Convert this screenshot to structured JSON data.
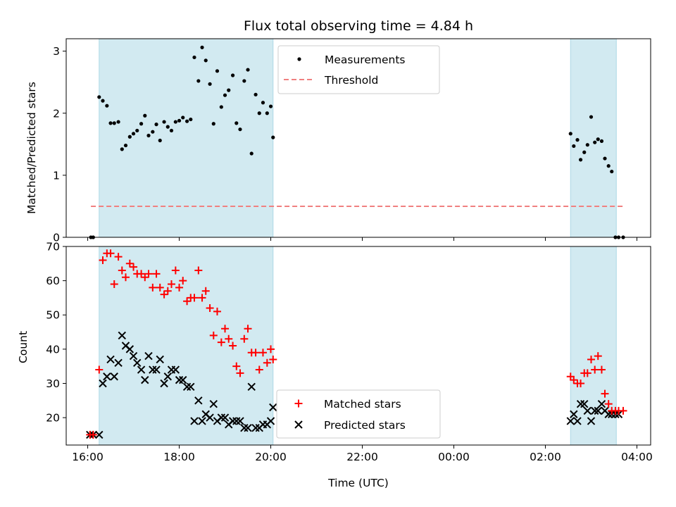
{
  "chart_data": {
    "title": "Flux total observing time = 4.84 h",
    "xlabel": "Time (UTC)",
    "x_tick_labels": [
      "16:00",
      "18:00",
      "20:00",
      "22:00",
      "00:00",
      "02:00",
      "04:00"
    ],
    "x_tick_hours": [
      16,
      18,
      20,
      22,
      24,
      26,
      28
    ],
    "xlim_hours": [
      15.53,
      28.3
    ],
    "shaded_intervals_hours": [
      [
        16.25,
        20.05
      ],
      [
        26.55,
        27.55
      ]
    ],
    "colors": {
      "shade": "#add8e6",
      "threshold": "#f08080",
      "matched": "#ff0000",
      "predicted": "#000000",
      "measurements": "#000000"
    },
    "top_panel": {
      "type": "scatter",
      "ylabel": "Matched/Predicted stars",
      "ylim": [
        0,
        3.2
      ],
      "y_ticks": [
        0,
        1,
        2,
        3
      ],
      "legend_position": "top-center",
      "threshold": {
        "name": "Threshold",
        "y": 0.5,
        "x_range_hours": [
          16.07,
          27.7
        ],
        "style": "dashed"
      },
      "measurements": {
        "name": "Measurements",
        "x_hours": [
          16.07,
          16.12,
          16.25,
          16.33,
          16.42,
          16.5,
          16.58,
          16.67,
          16.75,
          16.83,
          16.92,
          17.0,
          17.08,
          17.17,
          17.25,
          17.33,
          17.42,
          17.5,
          17.58,
          17.67,
          17.75,
          17.83,
          17.92,
          18.0,
          18.08,
          18.17,
          18.25,
          18.33,
          18.42,
          18.5,
          18.58,
          18.67,
          18.75,
          18.83,
          18.92,
          19.0,
          19.08,
          19.17,
          19.25,
          19.33,
          19.42,
          19.5,
          19.58,
          19.67,
          19.75,
          19.83,
          19.92,
          20.0,
          20.05,
          26.55,
          26.62,
          26.7,
          26.77,
          26.85,
          26.92,
          27.0,
          27.08,
          27.15,
          27.23,
          27.3,
          27.38,
          27.45,
          27.53,
          27.6,
          27.7
        ],
        "y": [
          0.0,
          0.0,
          2.26,
          2.2,
          2.12,
          1.84,
          1.84,
          1.86,
          1.42,
          1.48,
          1.62,
          1.67,
          1.72,
          1.83,
          1.96,
          1.64,
          1.7,
          1.82,
          1.56,
          1.86,
          1.78,
          1.72,
          1.86,
          1.88,
          1.93,
          1.87,
          1.9,
          2.9,
          2.52,
          3.06,
          2.85,
          2.47,
          1.83,
          2.68,
          2.1,
          2.29,
          2.37,
          2.61,
          1.84,
          1.74,
          2.52,
          2.7,
          1.35,
          2.3,
          2.0,
          2.17,
          2.0,
          2.11,
          1.61,
          1.67,
          1.47,
          1.57,
          1.25,
          1.37,
          1.49,
          1.94,
          1.53,
          1.58,
          1.55,
          1.27,
          1.15,
          1.06,
          0.0,
          0.0,
          0.0
        ]
      }
    },
    "bottom_panel": {
      "type": "scatter",
      "ylabel": "Count",
      "ylim": [
        12,
        70
      ],
      "y_ticks": [
        20,
        30,
        40,
        50,
        60,
        70
      ],
      "legend_position": "bottom-center",
      "series": [
        {
          "name": "Matched stars",
          "marker": "plus",
          "x_hours": [
            16.05,
            16.12,
            16.25,
            16.33,
            16.42,
            16.5,
            16.58,
            16.67,
            16.75,
            16.83,
            16.92,
            17.0,
            17.08,
            17.17,
            17.25,
            17.33,
            17.42,
            17.5,
            17.58,
            17.67,
            17.75,
            17.83,
            17.92,
            18.0,
            18.08,
            18.17,
            18.25,
            18.33,
            18.42,
            18.5,
            18.58,
            18.67,
            18.75,
            18.83,
            18.92,
            19.0,
            19.08,
            19.17,
            19.25,
            19.33,
            19.42,
            19.5,
            19.58,
            19.67,
            19.75,
            19.83,
            19.92,
            20.0,
            20.05,
            26.55,
            26.62,
            26.7,
            26.77,
            26.85,
            26.92,
            27.0,
            27.08,
            27.15,
            27.23,
            27.3,
            27.38,
            27.45,
            27.53,
            27.6,
            27.7
          ],
          "y": [
            15,
            15,
            34,
            66,
            68,
            68,
            59,
            67,
            63,
            61,
            65,
            64,
            62,
            62,
            61,
            62,
            58,
            62,
            58,
            56,
            57,
            59,
            63,
            58,
            60,
            54,
            55,
            55,
            63,
            55,
            57,
            52,
            44,
            51,
            42,
            46,
            43,
            41,
            35,
            33,
            43,
            46,
            39,
            39,
            34,
            39,
            36,
            40,
            37,
            32,
            31,
            30,
            30,
            33,
            33,
            37,
            34,
            38,
            34,
            27,
            24,
            22,
            22,
            22,
            22
          ]
        },
        {
          "name": "Predicted stars",
          "marker": "x",
          "x_hours": [
            16.05,
            16.12,
            16.25,
            16.33,
            16.42,
            16.5,
            16.58,
            16.67,
            16.75,
            16.83,
            16.92,
            17.0,
            17.08,
            17.17,
            17.25,
            17.33,
            17.42,
            17.5,
            17.58,
            17.67,
            17.75,
            17.83,
            17.92,
            18.0,
            18.08,
            18.17,
            18.25,
            18.33,
            18.42,
            18.5,
            18.58,
            18.67,
            18.75,
            18.83,
            18.92,
            19.0,
            19.08,
            19.17,
            19.25,
            19.33,
            19.42,
            19.5,
            19.58,
            19.67,
            19.75,
            19.83,
            19.92,
            20.0,
            20.05,
            26.55,
            26.62,
            26.7,
            26.77,
            26.85,
            26.92,
            27.0,
            27.08,
            27.15,
            27.23,
            27.3,
            27.38,
            27.45,
            27.53,
            27.6
          ],
          "y": [
            15,
            15,
            15,
            30,
            32,
            37,
            32,
            36,
            44,
            41,
            40,
            38,
            36,
            34,
            31,
            38,
            34,
            34,
            37,
            30,
            32,
            34,
            34,
            31,
            31,
            29,
            29,
            19,
            25,
            19,
            21,
            20,
            24,
            19,
            20,
            20,
            18,
            19,
            19,
            19,
            17,
            17,
            29,
            17,
            17,
            18,
            18,
            19,
            23,
            19,
            21,
            19,
            24,
            24,
            22,
            19,
            22,
            22,
            24,
            22,
            21,
            21,
            21,
            21
          ]
        }
      ]
    }
  }
}
